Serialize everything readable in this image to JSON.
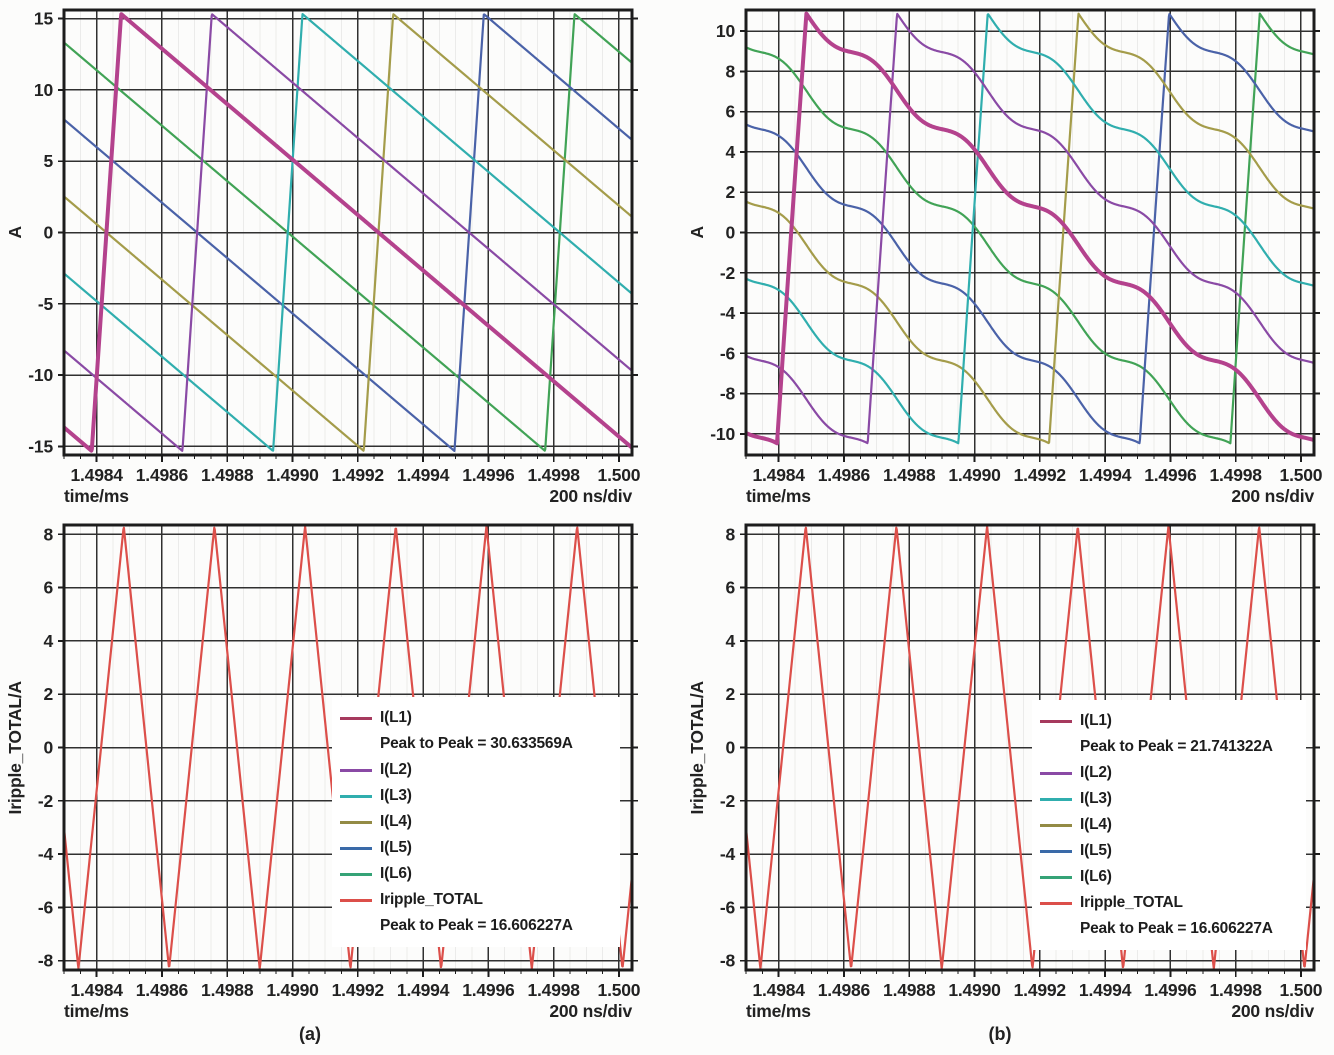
{
  "figure": {
    "units_note": "200 ns/div",
    "captions": {
      "a": "(a)",
      "b": "(b)"
    }
  },
  "chart_data": [
    {
      "id": "phase-currents-uncoupled",
      "type": "line",
      "position": "top-left",
      "ylabel": "A",
      "xlabel": "time/ms",
      "x_div_label": "200 ns/div",
      "x_range_ms": [
        1.4983,
        1.50004
      ],
      "y_range_A": [
        -15.6,
        15.6
      ],
      "x_tick_values": [
        1.4984,
        1.4986,
        1.4988,
        1.499,
        1.4992,
        1.4994,
        1.4996,
        1.4998,
        1.5
      ],
      "x_tick_labels": [
        "1.4984",
        "1.4986",
        "1.4988",
        "1.4990",
        "1.4992",
        "1.4994",
        "1.4996",
        "1.4998",
        "1.500"
      ],
      "y_tick_values": [
        15,
        10,
        5,
        0,
        -5,
        -10,
        -15
      ],
      "y_tick_labels": [
        "15",
        "10",
        "5",
        "0",
        "-5",
        "-10",
        "-15"
      ],
      "waveform": {
        "kind": "interleaved_sawtooth",
        "phases": 6,
        "switching_period_us": 1.6667,
        "rise_time_us": 0.09,
        "phase_stagger_us": 0.27778,
        "phase1_peak_time_ms": 1.498475,
        "peak_to_peak_A": 30.633569,
        "step_modulation_A": 0
      },
      "series": [
        {
          "name": "I(L1)",
          "color": "#b4428d",
          "emphasis": true
        },
        {
          "name": "I(L2)",
          "color": "#8a4aa5"
        },
        {
          "name": "I(L3)",
          "color": "#30aeae"
        },
        {
          "name": "I(L4)",
          "color": "#a49c4a"
        },
        {
          "name": "I(L5)",
          "color": "#4a62a8"
        },
        {
          "name": "I(L6)",
          "color": "#41a356"
        }
      ]
    },
    {
      "id": "phase-currents-coupled",
      "type": "line",
      "position": "top-right",
      "ylabel": "A",
      "xlabel": "time/ms",
      "x_div_label": "200 ns/div",
      "x_range_ms": [
        1.4983,
        1.50004
      ],
      "y_range_A": [
        -11.05,
        11.05
      ],
      "x_tick_values": [
        1.4984,
        1.4986,
        1.4988,
        1.499,
        1.4992,
        1.4994,
        1.4996,
        1.4998,
        1.5
      ],
      "x_tick_labels": [
        "1.4984",
        "1.4986",
        "1.4988",
        "1.4990",
        "1.4992",
        "1.4994",
        "1.4996",
        "1.4998",
        "1.500"
      ],
      "y_tick_values": [
        10,
        8,
        6,
        4,
        2,
        0,
        -2,
        -4,
        -6,
        -8,
        -10
      ],
      "y_tick_labels": [
        "10",
        "8",
        "6",
        "4",
        "2",
        "0",
        "-2",
        "-4",
        "-6",
        "-8",
        "-10"
      ],
      "waveform": {
        "kind": "interleaved_sawtooth",
        "phases": 6,
        "switching_period_us": 1.6667,
        "rise_time_us": 0.09,
        "phase_stagger_us": 0.27778,
        "phase1_peak_time_ms": 1.498485,
        "peak_to_peak_A": 21.741322,
        "step_modulation_A": 0.45
      },
      "series": [
        {
          "name": "I(L1)",
          "color": "#b4428d",
          "emphasis": true
        },
        {
          "name": "I(L2)",
          "color": "#8a4aa5"
        },
        {
          "name": "I(L3)",
          "color": "#30aeae"
        },
        {
          "name": "I(L4)",
          "color": "#a49c4a"
        },
        {
          "name": "I(L5)",
          "color": "#4a62a8"
        },
        {
          "name": "I(L6)",
          "color": "#41a356"
        }
      ]
    },
    {
      "id": "total-ripple-uncoupled",
      "type": "line",
      "position": "bottom-left",
      "caption": "(a)",
      "ylabel": "Iripple_TOTAL/A",
      "xlabel": "time/ms",
      "x_div_label": "200 ns/div",
      "x_range_ms": [
        1.4983,
        1.50004
      ],
      "y_range_A": [
        -8.35,
        8.35
      ],
      "x_tick_values": [
        1.4984,
        1.4986,
        1.4988,
        1.499,
        1.4992,
        1.4994,
        1.4996,
        1.4998,
        1.5
      ],
      "x_tick_labels": [
        "1.4984",
        "1.4986",
        "1.4988",
        "1.4990",
        "1.4992",
        "1.4994",
        "1.4996",
        "1.4998",
        "1.500"
      ],
      "y_tick_values": [
        8,
        6,
        4,
        2,
        0,
        -2,
        -4,
        -6,
        -8
      ],
      "y_tick_labels": [
        "8",
        "6",
        "4",
        "2",
        "0",
        "-2",
        "-4",
        "-6",
        "-8"
      ],
      "waveform": {
        "kind": "triangle",
        "period_us": 0.27778,
        "peak_time_ms": 1.498483,
        "peak_to_peak_A": 16.606227
      },
      "series": [
        {
          "name": "Iripple_TOTAL",
          "color": "#dc4f4a"
        }
      ],
      "legend": {
        "items": [
          {
            "label": "I(L1)",
            "color": "#a63a5e",
            "note": "Peak to Peak = 30.633569A"
          },
          {
            "label": "I(L2)",
            "color": "#8a4aa5"
          },
          {
            "label": "I(L3)",
            "color": "#30aeae"
          },
          {
            "label": "I(L4)",
            "color": "#938b45"
          },
          {
            "label": "I(L5)",
            "color": "#3a6aa8"
          },
          {
            "label": "I(L6)",
            "color": "#35a377"
          },
          {
            "label": "Iripple_TOTAL",
            "color": "#dc4f4a",
            "note": "Peak to Peak = 16.606227A"
          }
        ]
      }
    },
    {
      "id": "total-ripple-coupled",
      "type": "line",
      "position": "bottom-right",
      "caption": "(b)",
      "ylabel": "Iripple_TOTAL/A",
      "xlabel": "time/ms",
      "x_div_label": "200 ns/div",
      "x_range_ms": [
        1.4983,
        1.50004
      ],
      "y_range_A": [
        -8.35,
        8.35
      ],
      "x_tick_values": [
        1.4984,
        1.4986,
        1.4988,
        1.499,
        1.4992,
        1.4994,
        1.4996,
        1.4998,
        1.5
      ],
      "x_tick_labels": [
        "1.4984",
        "1.4986",
        "1.4988",
        "1.4990",
        "1.4992",
        "1.4994",
        "1.4996",
        "1.4998",
        "1.500"
      ],
      "y_tick_values": [
        8,
        6,
        4,
        2,
        0,
        -2,
        -4,
        -6,
        -8
      ],
      "y_tick_labels": [
        "8",
        "6",
        "4",
        "2",
        "0",
        "-2",
        "-4",
        "-6",
        "-8"
      ],
      "waveform": {
        "kind": "triangle",
        "period_us": 0.27778,
        "peak_time_ms": 1.498483,
        "peak_to_peak_A": 16.606227
      },
      "series": [
        {
          "name": "Iripple_TOTAL",
          "color": "#dc4f4a"
        }
      ],
      "legend": {
        "items": [
          {
            "label": "I(L1)",
            "color": "#a63a5e",
            "note": "Peak to Peak = 21.741322A"
          },
          {
            "label": "I(L2)",
            "color": "#8a4aa5"
          },
          {
            "label": "I(L3)",
            "color": "#30aeae"
          },
          {
            "label": "I(L4)",
            "color": "#938b45"
          },
          {
            "label": "I(L5)",
            "color": "#3a6aa8"
          },
          {
            "label": "I(L6)",
            "color": "#35a377"
          },
          {
            "label": "Iripple_TOTAL",
            "color": "#dc4f4a",
            "note": "Peak to Peak = 16.606227A"
          }
        ]
      }
    }
  ]
}
